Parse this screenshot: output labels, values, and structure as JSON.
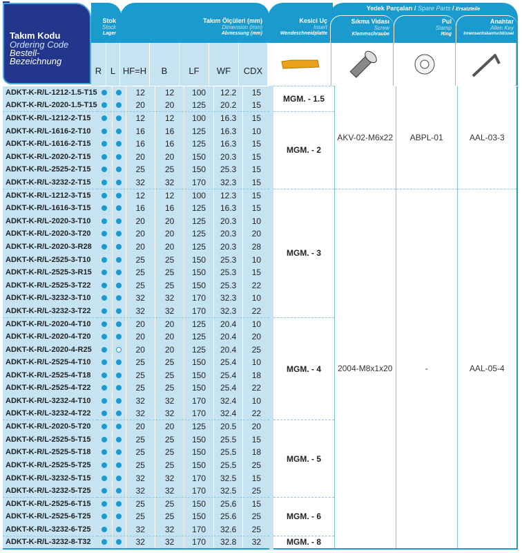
{
  "header": {
    "code": {
      "tr": "Takım Kodu",
      "en": "Ordering Code",
      "de": "Bestell-Bezeichnung"
    },
    "stock": {
      "tr": "Stok",
      "en": "Stock",
      "de": "Lager"
    },
    "dims": {
      "tr": "Takım Ölçüleri (mm)",
      "en": "Dimension (mm)",
      "de": "Abmessung (mm)"
    },
    "insert": {
      "tr": "Kesici Uç",
      "en": "Insert",
      "de": "Wendeschneidplatte"
    },
    "spare": {
      "tr": "Yedek Parçaları",
      "sep": "/",
      "en": "Spare Parts",
      "de": "Ersatzteile"
    },
    "screw": {
      "tr": "Sıkma Vidası",
      "en": "Screw",
      "de": "Klemmschraube"
    },
    "ring": {
      "tr": "Pul",
      "en": "Stamp",
      "de": "Ring"
    },
    "key": {
      "tr": "Anahtar",
      "en": "Allen Key",
      "de": "Innensechskantschlüssel"
    },
    "columns": [
      "R",
      "L",
      "HF=H",
      "B",
      "LF",
      "WF",
      "CDX"
    ]
  },
  "colors": {
    "navy": "#22378c",
    "teal": "#1b9bcd",
    "light": "#c5e3f1",
    "dot": "#1a9ad0"
  },
  "icons": [
    "insert-image",
    "screw-image",
    "washer-image",
    "allen-key-image"
  ],
  "groups": [
    {
      "insert": "MGM. - 1.5",
      "rows": [
        [
          "ADKT-K-R/L-1212-1.5-T15",
          1,
          1,
          "12",
          "12",
          "100",
          "12.2",
          "15"
        ],
        [
          "ADKT-K-R/L-2020-1.5-T15",
          1,
          1,
          "20",
          "20",
          "125",
          "20.2",
          "15"
        ]
      ]
    },
    {
      "insert": "MGM. - 2",
      "rows": [
        [
          "ADKT-K-R/L-1212-2-T15",
          1,
          1,
          "12",
          "12",
          "100",
          "16.3",
          "15"
        ],
        [
          "ADKT-K-R/L-1616-2-T10",
          1,
          1,
          "16",
          "16",
          "125",
          "16.3",
          "10"
        ],
        [
          "ADKT-K-R/L-1616-2-T15",
          1,
          1,
          "16",
          "16",
          "125",
          "16.3",
          "15"
        ],
        [
          "ADKT-K-R/L-2020-2-T15",
          1,
          1,
          "20",
          "20",
          "150",
          "20.3",
          "15"
        ],
        [
          "ADKT-K-R/L-2525-2-T15",
          1,
          1,
          "25",
          "25",
          "150",
          "25.3",
          "15"
        ],
        [
          "ADKT-K-R/L-3232-2-T15",
          1,
          1,
          "32",
          "32",
          "170",
          "32.3",
          "15"
        ]
      ]
    },
    {
      "insert": "MGM. - 3",
      "rows": [
        [
          "ADKT-K-R/L-1212-3-T15",
          1,
          1,
          "12",
          "12",
          "100",
          "12.3",
          "15"
        ],
        [
          "ADKT-K-R/L-1616-3-T15",
          1,
          1,
          "16",
          "16",
          "125",
          "16.3",
          "15"
        ],
        [
          "ADKT-K-R/L-2020-3-T10",
          1,
          1,
          "20",
          "20",
          "125",
          "20.3",
          "10"
        ],
        [
          "ADKT-K-R/L-2020-3-T20",
          1,
          1,
          "20",
          "20",
          "125",
          "20.3",
          "20"
        ],
        [
          "ADKT-K-R/L-2020-3-R28",
          1,
          1,
          "20",
          "20",
          "125",
          "20.3",
          "28"
        ],
        [
          "ADKT-K-R/L-2525-3-T10",
          1,
          1,
          "25",
          "25",
          "150",
          "25.3",
          "10"
        ],
        [
          "ADKT-K-R/L-2525-3-R15",
          1,
          1,
          "25",
          "25",
          "150",
          "25.3",
          "15"
        ],
        [
          "ADKT-K-R/L-2525-3-T22",
          1,
          1,
          "25",
          "25",
          "150",
          "25.3",
          "22"
        ],
        [
          "ADKT-K-R/L-3232-3-T10",
          1,
          1,
          "32",
          "32",
          "170",
          "32.3",
          "10"
        ],
        [
          "ADKT-K-R/L-3232-3-T22",
          1,
          1,
          "32",
          "32",
          "170",
          "32.3",
          "22"
        ]
      ]
    },
    {
      "insert": "MGM. - 4",
      "rows": [
        [
          "ADKT-K-R/L-2020-4-T10",
          1,
          1,
          "20",
          "20",
          "125",
          "20.4",
          "10"
        ],
        [
          "ADKT-K-R/L-2020-4-T20",
          1,
          1,
          "20",
          "20",
          "125",
          "20.4",
          "20"
        ],
        [
          "ADKT-K-R/L-2020-4-R25",
          1,
          0,
          "20",
          "20",
          "125",
          "20.4",
          "25"
        ],
        [
          "ADKT-K-R/L-2525-4-T10",
          1,
          1,
          "25",
          "25",
          "150",
          "25.4",
          "10"
        ],
        [
          "ADKT-K-R/L-2525-4-T18",
          1,
          1,
          "25",
          "25",
          "150",
          "25.4",
          "18"
        ],
        [
          "ADKT-K-R/L-2525-4-T22",
          1,
          1,
          "25",
          "25",
          "150",
          "25.4",
          "22"
        ],
        [
          "ADKT-K-R/L-3232-4-T10",
          1,
          1,
          "32",
          "32",
          "170",
          "32.4",
          "10"
        ],
        [
          "ADKT-K-R/L-3232-4-T22",
          1,
          1,
          "32",
          "32",
          "170",
          "32.4",
          "22"
        ]
      ]
    },
    {
      "insert": "MGM. - 5",
      "rows": [
        [
          "ADKT-K-R/L-2020-5-T20",
          1,
          1,
          "20",
          "20",
          "125",
          "20.5",
          "20"
        ],
        [
          "ADKT-K-R/L-2525-5-T15",
          1,
          1,
          "25",
          "25",
          "150",
          "25.5",
          "15"
        ],
        [
          "ADKT-K-R/L-2525-5-T18",
          1,
          1,
          "25",
          "25",
          "150",
          "25.5",
          "18"
        ],
        [
          "ADKT-K-R/L-2525-5-T25",
          1,
          1,
          "25",
          "25",
          "150",
          "25.5",
          "25"
        ],
        [
          "ADKT-K-R/L-3232-5-T15",
          1,
          1,
          "32",
          "32",
          "170",
          "32.5",
          "15"
        ],
        [
          "ADKT-K-R/L-3232-5-T25",
          1,
          1,
          "32",
          "32",
          "170",
          "32.5",
          "25"
        ]
      ]
    },
    {
      "insert": "MGM. - 6",
      "rows": [
        [
          "ADKT-K-R/L-2525-6-T15",
          1,
          1,
          "25",
          "25",
          "150",
          "25.6",
          "15"
        ],
        [
          "ADKT-K-R/L-2525-6-T25",
          1,
          1,
          "25",
          "25",
          "150",
          "25.6",
          "25"
        ],
        [
          "ADKT-K-R/L-3232-6-T25",
          1,
          1,
          "32",
          "32",
          "170",
          "32.6",
          "25"
        ]
      ]
    },
    {
      "insert": "MGM. - 8",
      "rows": [
        [
          "ADKT-K-R/L-3232-8-T32",
          1,
          1,
          "32",
          "32",
          "170",
          "32.8",
          "32"
        ]
      ]
    }
  ],
  "spare_parts": [
    {
      "group_count": 2,
      "screw": "AKV-02-M6x22",
      "ring": "ABPL-01",
      "key": "AAL-03-3"
    },
    {
      "group_count": 5,
      "screw": "2004-M8x1x20",
      "ring": "-",
      "key": "AAL-05-4"
    }
  ]
}
